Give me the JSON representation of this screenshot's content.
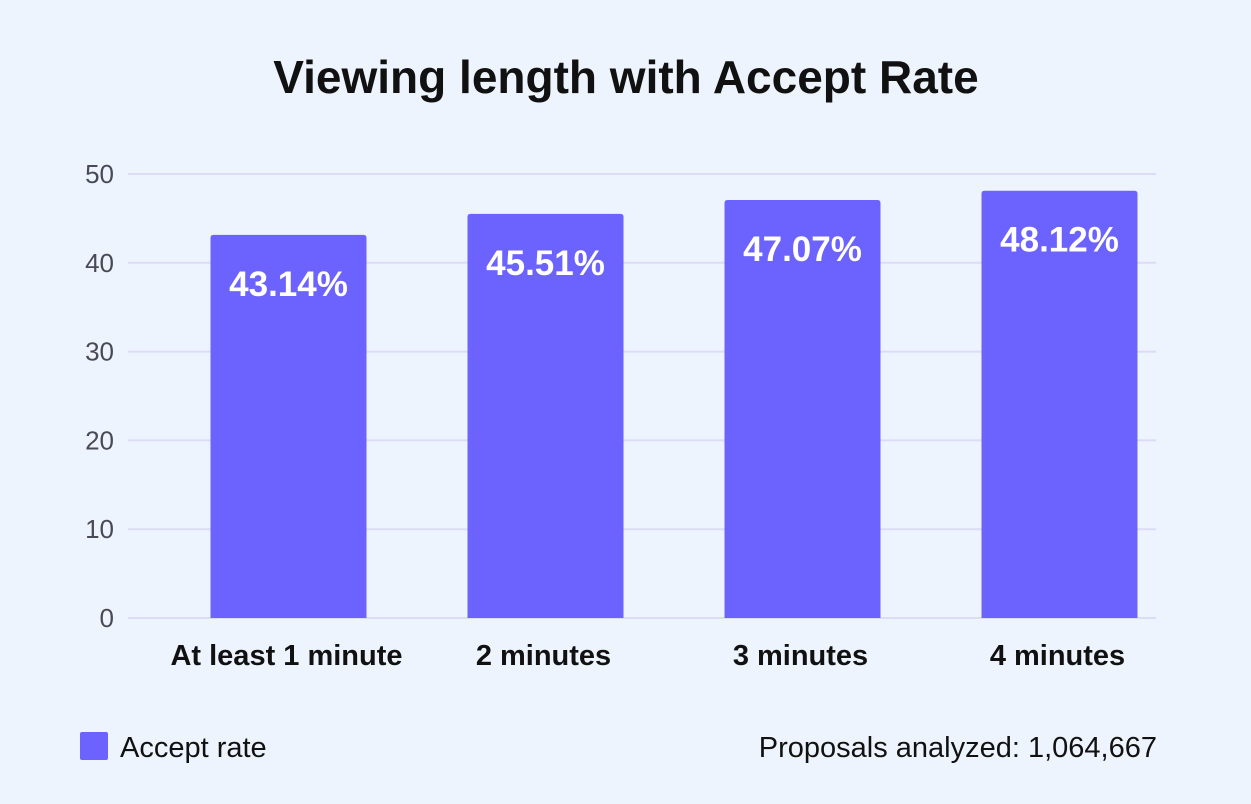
{
  "chart_data": {
    "type": "bar",
    "title": "Viewing length with Accept Rate",
    "xlabel": "",
    "ylabel": "",
    "categories": [
      "At least 1 minute",
      "2 minutes",
      "3 minutes",
      "4 minutes"
    ],
    "series": [
      {
        "name": "Accept rate",
        "values": [
          43.14,
          45.51,
          47.07,
          48.12
        ],
        "data_labels": [
          "43.14%",
          "45.51%",
          "47.07%",
          "48.12%"
        ],
        "color": "#6c63ff"
      }
    ],
    "ylim": [
      0,
      50
    ],
    "yticks": [
      0,
      10,
      20,
      30,
      40,
      50
    ],
    "grid": true,
    "legend_position": "bottom-left"
  },
  "footnote": "Proposals analyzed: 1,064,667",
  "colors": {
    "background": "#eef4fd",
    "bar": "#6c63ff",
    "grid": "#dcdcf7"
  }
}
